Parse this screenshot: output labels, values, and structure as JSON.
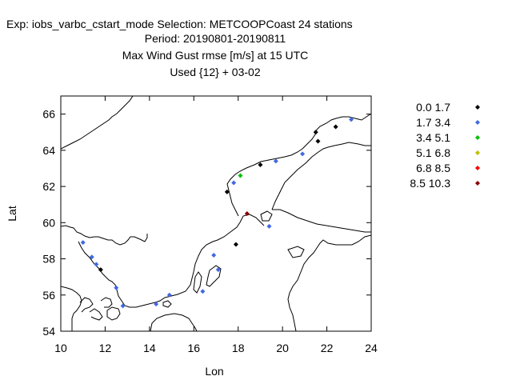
{
  "header": {
    "line1": "Exp: iobs_varbc_cstart_mode   Selection: METCOOPCoast     24 stations",
    "line2": "Period: 20190801-20190811",
    "line3": "Max Wind Gust rmse [m/s] at  15 UTC",
    "line4": "Used {12} + 03-02"
  },
  "chart_data": {
    "type": "scatter",
    "title": "Max Wind Gust rmse [m/s] at  15 UTC",
    "xlabel": "Lon",
    "ylabel": "Lat",
    "xlim": [
      10,
      24
    ],
    "ylim": [
      54,
      67
    ],
    "xticks": [
      10,
      12,
      14,
      16,
      18,
      20,
      22,
      24
    ],
    "yticks": [
      54,
      56,
      58,
      60,
      62,
      64,
      66
    ],
    "legend": [
      {
        "label": "0.0 1.7",
        "color": "#000000"
      },
      {
        "label": "1.7 3.4",
        "color": "#4169e1"
      },
      {
        "label": "3.4 5.1",
        "color": "#00c000"
      },
      {
        "label": "5.1 6.8",
        "color": "#c0c000"
      },
      {
        "label": "6.8 8.5",
        "color": "#ff0000"
      },
      {
        "label": "8.5 10.3",
        "color": "#8b0000"
      }
    ],
    "points": [
      {
        "lon": 11.0,
        "lat": 58.9,
        "cls": 1
      },
      {
        "lon": 11.4,
        "lat": 58.1,
        "cls": 1
      },
      {
        "lon": 11.6,
        "lat": 57.7,
        "cls": 1
      },
      {
        "lon": 11.8,
        "lat": 57.4,
        "cls": 0
      },
      {
        "lon": 12.5,
        "lat": 56.4,
        "cls": 1
      },
      {
        "lon": 12.8,
        "lat": 55.4,
        "cls": 1
      },
      {
        "lon": 14.3,
        "lat": 55.5,
        "cls": 1
      },
      {
        "lon": 14.9,
        "lat": 56.0,
        "cls": 1
      },
      {
        "lon": 16.4,
        "lat": 56.2,
        "cls": 1
      },
      {
        "lon": 17.1,
        "lat": 57.4,
        "cls": 1
      },
      {
        "lon": 16.9,
        "lat": 58.2,
        "cls": 1
      },
      {
        "lon": 17.9,
        "lat": 58.8,
        "cls": 0
      },
      {
        "lon": 18.4,
        "lat": 60.5,
        "cls": 5
      },
      {
        "lon": 19.4,
        "lat": 59.8,
        "cls": 1
      },
      {
        "lon": 17.5,
        "lat": 61.7,
        "cls": 0
      },
      {
        "lon": 17.8,
        "lat": 62.2,
        "cls": 1
      },
      {
        "lon": 18.1,
        "lat": 62.6,
        "cls": 2
      },
      {
        "lon": 19.0,
        "lat": 63.2,
        "cls": 0
      },
      {
        "lon": 19.7,
        "lat": 63.4,
        "cls": 1
      },
      {
        "lon": 20.9,
        "lat": 63.8,
        "cls": 1
      },
      {
        "lon": 21.6,
        "lat": 64.5,
        "cls": 0
      },
      {
        "lon": 21.5,
        "lat": 65.0,
        "cls": 0
      },
      {
        "lon": 22.4,
        "lat": 65.3,
        "cls": 0
      },
      {
        "lon": 23.1,
        "lat": 65.7,
        "cls": 1
      }
    ]
  }
}
